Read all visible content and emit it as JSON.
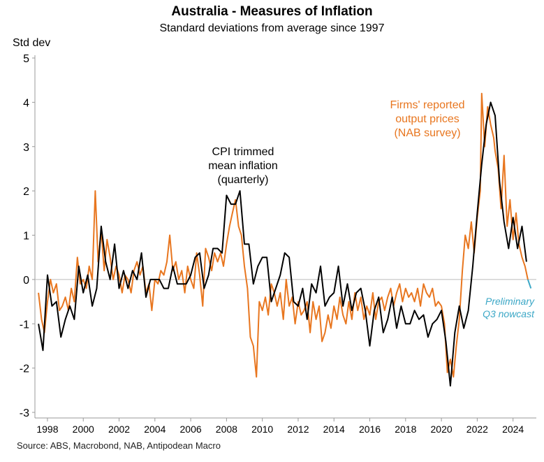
{
  "chart_data": {
    "type": "line",
    "title": "Australia - Measures of Inflation",
    "subtitle": "Standard deviations from average since 1997",
    "ylabel": "Std dev",
    "xlabel": "",
    "ylim": [
      -3,
      5
    ],
    "xlim": [
      1997.3,
      2025.3
    ],
    "y_ticks": [
      -3,
      -2,
      -1,
      0,
      1,
      2,
      3,
      4,
      5
    ],
    "x_ticks": [
      1998,
      2000,
      2002,
      2004,
      2006,
      2008,
      2010,
      2012,
      2014,
      2016,
      2018,
      2020,
      2022,
      2024
    ],
    "grid": false,
    "source": "Source: ABS, Macrobond, NAB, Antipodean Macro",
    "series": [
      {
        "name": "CPI trimmed mean inflation (quarterly)",
        "color": "#000000",
        "annotation": [
          "CPI trimmed",
          "mean inflation",
          "(quarterly)"
        ],
        "points": [
          [
            1997.5,
            -1.0
          ],
          [
            1997.75,
            -1.6
          ],
          [
            1998.0,
            0.1
          ],
          [
            1998.25,
            -0.6
          ],
          [
            1998.5,
            -0.5
          ],
          [
            1998.75,
            -1.3
          ],
          [
            1999.0,
            -0.9
          ],
          [
            1999.25,
            -0.6
          ],
          [
            1999.5,
            -0.9
          ],
          [
            1999.75,
            0.3
          ],
          [
            2000.0,
            -0.3
          ],
          [
            2000.25,
            0.1
          ],
          [
            2000.5,
            -0.6
          ],
          [
            2000.75,
            -0.2
          ],
          [
            2001.0,
            1.2
          ],
          [
            2001.25,
            0.4
          ],
          [
            2001.5,
            0.0
          ],
          [
            2001.75,
            0.8
          ],
          [
            2002.0,
            -0.2
          ],
          [
            2002.25,
            0.2
          ],
          [
            2002.5,
            -0.2
          ],
          [
            2002.75,
            0.2
          ],
          [
            2003.0,
            0.0
          ],
          [
            2003.25,
            0.6
          ],
          [
            2003.5,
            -0.4
          ],
          [
            2003.75,
            0.0
          ],
          [
            2004.0,
            0.0
          ],
          [
            2004.25,
            0.0
          ],
          [
            2004.5,
            -0.2
          ],
          [
            2004.75,
            -0.2
          ],
          [
            2005.0,
            0.3
          ],
          [
            2005.25,
            -0.1
          ],
          [
            2005.5,
            -0.1
          ],
          [
            2005.75,
            -0.1
          ],
          [
            2006.0,
            0.1
          ],
          [
            2006.25,
            0.5
          ],
          [
            2006.5,
            0.6
          ],
          [
            2006.75,
            -0.2
          ],
          [
            2007.0,
            0.1
          ],
          [
            2007.25,
            0.7
          ],
          [
            2007.5,
            0.7
          ],
          [
            2007.75,
            0.6
          ],
          [
            2008.0,
            1.9
          ],
          [
            2008.25,
            1.7
          ],
          [
            2008.5,
            1.7
          ],
          [
            2008.75,
            2.0
          ],
          [
            2009.0,
            0.8
          ],
          [
            2009.25,
            0.8
          ],
          [
            2009.5,
            -0.1
          ],
          [
            2009.75,
            0.3
          ],
          [
            2010.0,
            0.5
          ],
          [
            2010.25,
            0.5
          ],
          [
            2010.5,
            -0.5
          ],
          [
            2010.75,
            -0.2
          ],
          [
            2011.0,
            0.1
          ],
          [
            2011.25,
            0.6
          ],
          [
            2011.5,
            0.5
          ],
          [
            2011.75,
            -0.5
          ],
          [
            2012.0,
            -0.6
          ],
          [
            2012.25,
            -0.2
          ],
          [
            2012.5,
            -0.9
          ],
          [
            2012.75,
            -0.1
          ],
          [
            2013.0,
            -0.3
          ],
          [
            2013.25,
            0.3
          ],
          [
            2013.5,
            -0.6
          ],
          [
            2013.75,
            -0.4
          ],
          [
            2014.0,
            -0.3
          ],
          [
            2014.25,
            0.3
          ],
          [
            2014.5,
            -0.6
          ],
          [
            2014.75,
            -0.1
          ],
          [
            2015.0,
            -0.7
          ],
          [
            2015.25,
            -0.3
          ],
          [
            2015.5,
            -0.2
          ],
          [
            2015.75,
            -0.7
          ],
          [
            2016.0,
            -1.5
          ],
          [
            2016.25,
            -0.7
          ],
          [
            2016.5,
            -0.4
          ],
          [
            2016.75,
            -1.2
          ],
          [
            2017.0,
            -0.9
          ],
          [
            2017.25,
            -0.4
          ],
          [
            2017.5,
            -1.1
          ],
          [
            2017.75,
            -0.6
          ],
          [
            2018.0,
            -1.0
          ],
          [
            2018.25,
            -1.0
          ],
          [
            2018.5,
            -0.7
          ],
          [
            2018.75,
            -0.9
          ],
          [
            2019.0,
            -0.8
          ],
          [
            2019.25,
            -1.3
          ],
          [
            2019.5,
            -1.0
          ],
          [
            2019.75,
            -0.9
          ],
          [
            2020.0,
            -0.7
          ],
          [
            2020.25,
            -1.4
          ],
          [
            2020.5,
            -2.4
          ],
          [
            2020.75,
            -1.2
          ],
          [
            2021.0,
            -0.6
          ],
          [
            2021.25,
            -1.1
          ],
          [
            2021.5,
            -0.7
          ],
          [
            2021.75,
            0.3
          ],
          [
            2022.0,
            1.5
          ],
          [
            2022.25,
            2.6
          ],
          [
            2022.5,
            3.5
          ],
          [
            2022.75,
            4.0
          ],
          [
            2023.0,
            3.7
          ],
          [
            2023.25,
            2.2
          ],
          [
            2023.5,
            1.3
          ],
          [
            2023.75,
            0.7
          ],
          [
            2024.0,
            1.4
          ],
          [
            2024.25,
            0.7
          ],
          [
            2024.5,
            1.2
          ],
          [
            2024.75,
            0.4
          ]
        ]
      },
      {
        "name": "Firms' reported output prices (NAB survey)",
        "color": "#e8761f",
        "annotation": [
          "Firms' reported",
          "output prices",
          "(NAB survey)"
        ],
        "points": [
          [
            1997.5,
            -0.3
          ],
          [
            1997.67,
            -0.9
          ],
          [
            1997.83,
            -1.2
          ],
          [
            1998.0,
            -0.5
          ],
          [
            1998.17,
            0.0
          ],
          [
            1998.33,
            -0.3
          ],
          [
            1998.5,
            -0.1
          ],
          [
            1998.67,
            -0.7
          ],
          [
            1998.83,
            -0.6
          ],
          [
            1999.0,
            -0.4
          ],
          [
            1999.17,
            -0.7
          ],
          [
            1999.33,
            -0.2
          ],
          [
            1999.5,
            -0.5
          ],
          [
            1999.67,
            0.5
          ],
          [
            1999.83,
            -0.1
          ],
          [
            2000.0,
            0.0
          ],
          [
            2000.17,
            -0.2
          ],
          [
            2000.33,
            0.3
          ],
          [
            2000.5,
            0.0
          ],
          [
            2000.67,
            2.0
          ],
          [
            2000.83,
            0.4
          ],
          [
            2001.0,
            1.1
          ],
          [
            2001.17,
            0.2
          ],
          [
            2001.33,
            0.9
          ],
          [
            2001.5,
            0.5
          ],
          [
            2001.67,
            0.0
          ],
          [
            2001.83,
            0.3
          ],
          [
            2002.0,
            0.1
          ],
          [
            2002.17,
            -0.3
          ],
          [
            2002.33,
            0.1
          ],
          [
            2002.5,
            0.0
          ],
          [
            2002.67,
            -0.3
          ],
          [
            2002.83,
            0.2
          ],
          [
            2003.0,
            0.4
          ],
          [
            2003.17,
            0.1
          ],
          [
            2003.33,
            0.3
          ],
          [
            2003.5,
            -0.3
          ],
          [
            2003.67,
            -0.1
          ],
          [
            2003.83,
            -0.7
          ],
          [
            2004.0,
            0.0
          ],
          [
            2004.17,
            -0.1
          ],
          [
            2004.33,
            0.2
          ],
          [
            2004.5,
            0.1
          ],
          [
            2004.67,
            0.4
          ],
          [
            2004.83,
            1.0
          ],
          [
            2005.0,
            0.2
          ],
          [
            2005.17,
            0.4
          ],
          [
            2005.33,
            0.0
          ],
          [
            2005.5,
            0.2
          ],
          [
            2005.67,
            -0.3
          ],
          [
            2005.83,
            0.3
          ],
          [
            2006.0,
            0.0
          ],
          [
            2006.17,
            -0.2
          ],
          [
            2006.33,
            0.6
          ],
          [
            2006.5,
            0.1
          ],
          [
            2006.67,
            -0.6
          ],
          [
            2006.83,
            0.7
          ],
          [
            2007.0,
            0.5
          ],
          [
            2007.17,
            0.2
          ],
          [
            2007.33,
            0.6
          ],
          [
            2007.5,
            0.4
          ],
          [
            2007.67,
            0.6
          ],
          [
            2007.83,
            0.3
          ],
          [
            2008.0,
            0.8
          ],
          [
            2008.17,
            1.2
          ],
          [
            2008.33,
            1.5
          ],
          [
            2008.5,
            1.8
          ],
          [
            2008.67,
            1.2
          ],
          [
            2008.83,
            1.0
          ],
          [
            2009.0,
            0.3
          ],
          [
            2009.17,
            -0.2
          ],
          [
            2009.33,
            -1.3
          ],
          [
            2009.5,
            -1.5
          ],
          [
            2009.67,
            -2.2
          ],
          [
            2009.83,
            -0.5
          ],
          [
            2010.0,
            -0.7
          ],
          [
            2010.17,
            -0.4
          ],
          [
            2010.33,
            -0.8
          ],
          [
            2010.5,
            -0.1
          ],
          [
            2010.67,
            -0.3
          ],
          [
            2010.83,
            -0.6
          ],
          [
            2011.0,
            -0.3
          ],
          [
            2011.17,
            -0.9
          ],
          [
            2011.33,
            0.0
          ],
          [
            2011.5,
            -0.6
          ],
          [
            2011.67,
            -0.4
          ],
          [
            2011.83,
            -1.0
          ],
          [
            2012.0,
            -0.5
          ],
          [
            2012.17,
            -0.8
          ],
          [
            2012.33,
            -0.7
          ],
          [
            2012.5,
            -0.5
          ],
          [
            2012.67,
            -1.2
          ],
          [
            2012.83,
            -0.5
          ],
          [
            2013.0,
            -0.9
          ],
          [
            2013.17,
            -0.6
          ],
          [
            2013.33,
            -1.4
          ],
          [
            2013.5,
            -1.2
          ],
          [
            2013.67,
            -0.8
          ],
          [
            2013.83,
            -1.1
          ],
          [
            2014.0,
            -0.6
          ],
          [
            2014.17,
            -0.9
          ],
          [
            2014.33,
            -0.4
          ],
          [
            2014.5,
            -0.8
          ],
          [
            2014.67,
            -1.0
          ],
          [
            2014.83,
            -0.5
          ],
          [
            2015.0,
            -0.9
          ],
          [
            2015.17,
            -0.3
          ],
          [
            2015.33,
            -0.7
          ],
          [
            2015.5,
            -0.4
          ],
          [
            2015.67,
            -0.9
          ],
          [
            2015.83,
            -0.6
          ],
          [
            2016.0,
            -0.8
          ],
          [
            2016.17,
            -0.3
          ],
          [
            2016.33,
            -0.9
          ],
          [
            2016.5,
            -0.5
          ],
          [
            2016.67,
            -0.4
          ],
          [
            2016.83,
            -0.7
          ],
          [
            2017.0,
            -0.4
          ],
          [
            2017.17,
            -0.2
          ],
          [
            2017.33,
            -0.6
          ],
          [
            2017.5,
            -0.3
          ],
          [
            2017.67,
            -0.1
          ],
          [
            2017.83,
            -0.5
          ],
          [
            2018.0,
            -0.2
          ],
          [
            2018.17,
            -0.4
          ],
          [
            2018.33,
            -0.3
          ],
          [
            2018.5,
            -0.5
          ],
          [
            2018.67,
            -0.2
          ],
          [
            2018.83,
            -0.6
          ],
          [
            2019.0,
            -0.1
          ],
          [
            2019.17,
            -0.3
          ],
          [
            2019.33,
            -0.4
          ],
          [
            2019.5,
            -0.2
          ],
          [
            2019.67,
            -0.6
          ],
          [
            2019.83,
            -0.5
          ],
          [
            2020.0,
            -0.6
          ],
          [
            2020.17,
            -1.0
          ],
          [
            2020.33,
            -2.1
          ],
          [
            2020.5,
            -1.8
          ],
          [
            2020.67,
            -2.2
          ],
          [
            2020.83,
            -1.5
          ],
          [
            2021.0,
            -0.9
          ],
          [
            2021.17,
            0.2
          ],
          [
            2021.33,
            1.0
          ],
          [
            2021.5,
            0.7
          ],
          [
            2021.67,
            1.3
          ],
          [
            2021.83,
            0.6
          ],
          [
            2022.0,
            1.4
          ],
          [
            2022.17,
            2.0
          ],
          [
            2022.25,
            4.2
          ],
          [
            2022.42,
            3.0
          ],
          [
            2022.58,
            3.9
          ],
          [
            2022.75,
            3.5
          ],
          [
            2022.92,
            3.2
          ],
          [
            2023.0,
            2.9
          ],
          [
            2023.17,
            2.5
          ],
          [
            2023.33,
            1.6
          ],
          [
            2023.5,
            2.8
          ],
          [
            2023.67,
            1.2
          ],
          [
            2023.83,
            1.8
          ],
          [
            2024.0,
            0.9
          ],
          [
            2024.17,
            1.5
          ],
          [
            2024.33,
            0.8
          ],
          [
            2024.5,
            0.5
          ],
          [
            2024.67,
            0.3
          ],
          [
            2024.83,
            0.0
          ]
        ]
      },
      {
        "name": "Preliminary Q3 nowcast",
        "color": "#3ba7c6",
        "annotation": [
          "Preliminary",
          "Q3 nowcast"
        ],
        "points": [
          [
            2024.83,
            0.0
          ],
          [
            2025.0,
            -0.2
          ]
        ]
      }
    ]
  }
}
